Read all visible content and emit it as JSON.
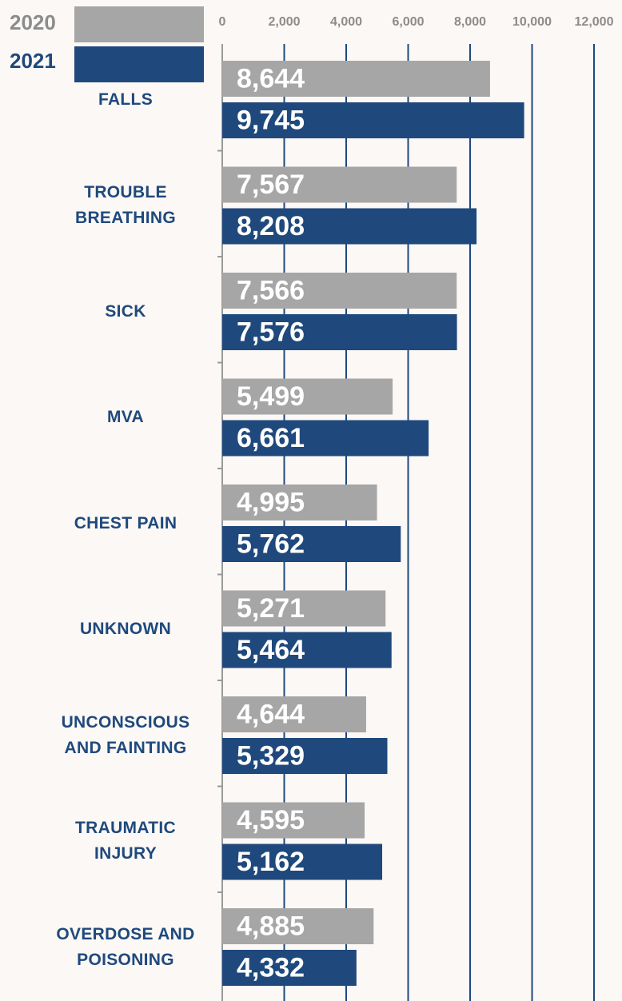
{
  "chart_data": {
    "type": "hbar",
    "categories": [
      "FALLS",
      "TROUBLE BREATHING",
      "SICK",
      "MVA",
      "CHEST PAIN",
      "UNKNOWN",
      "UNCONSCIOUS AND FAINTING",
      "TRAUMATIC INJURY",
      "OVERDOSE AND POISONING"
    ],
    "series": [
      {
        "name": "2020",
        "color": "#a6a6a6",
        "values": [
          8644,
          7567,
          7566,
          5499,
          4995,
          5271,
          4644,
          4595,
          4885
        ],
        "value_labels": [
          "8,644",
          "7,567",
          "7,566",
          "5,499",
          "4,995",
          "5,271",
          "4,644",
          "4,595",
          "4,885"
        ]
      },
      {
        "name": "2021",
        "color": "#1f497d",
        "values": [
          9745,
          8208,
          7576,
          6661,
          5762,
          5464,
          5329,
          5162,
          4332
        ],
        "value_labels": [
          "9,745",
          "8,208",
          "7,576",
          "6,661",
          "5,762",
          "5,464",
          "5,329",
          "5,162",
          "4,332"
        ]
      }
    ],
    "xlim": [
      0,
      12000
    ],
    "xticks": [
      0,
      {
        "value": 2000,
        "label": "2,000"
      },
      {
        "value": 4000,
        "label": "4,000"
      },
      {
        "value": 6000,
        "label": "6,000"
      },
      {
        "value": 8000,
        "label": "8,000"
      },
      {
        "value": 10000,
        "label": "10,000"
      },
      {
        "value": 12000,
        "label": "12,000"
      }
    ],
    "grid": true
  }
}
